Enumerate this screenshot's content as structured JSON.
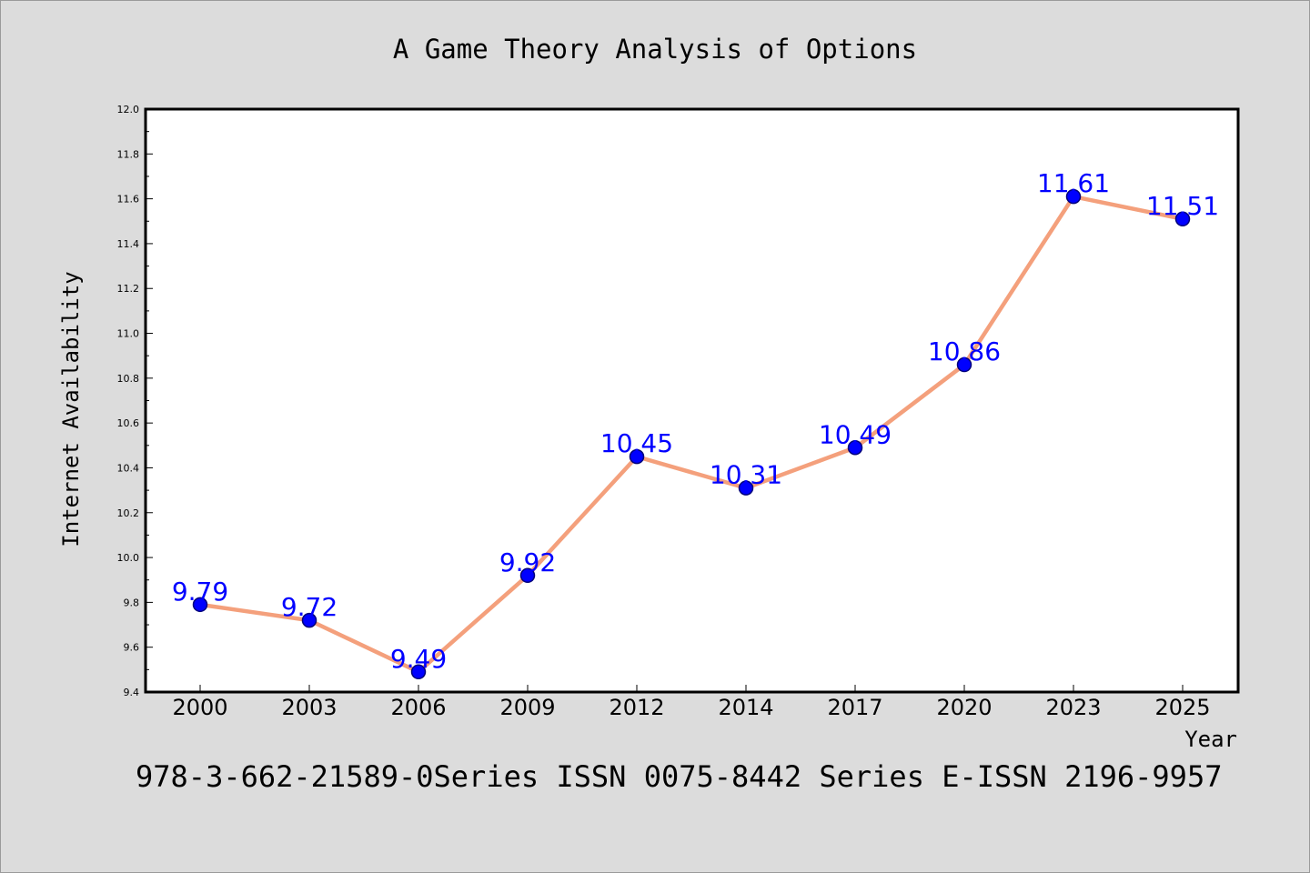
{
  "chart_data": {
    "type": "line",
    "title": "A Game Theory Analysis of Options",
    "xlabel": "Year",
    "ylabel": "Internet Availability",
    "categories": [
      "2000",
      "2003",
      "2006",
      "2009",
      "2012",
      "2014",
      "2017",
      "2020",
      "2023",
      "2025"
    ],
    "series": [
      {
        "values": [
          9.79,
          9.72,
          9.49,
          9.92,
          10.45,
          10.31,
          10.49,
          10.86,
          11.61,
          11.51
        ]
      }
    ],
    "data_labels": [
      "9.79",
      "9.72",
      "9.49",
      "9.92",
      "10.45",
      "10.31",
      "10.49",
      "10.86",
      "11.61",
      "11.51"
    ],
    "ylim": [
      9.4,
      12.0
    ],
    "yticks": [
      "9.4",
      "9.6",
      "9.8",
      "10.0",
      "10.2",
      "10.4",
      "10.6",
      "10.8",
      "11.0",
      "11.2",
      "11.4",
      "11.6",
      "11.8",
      "12.0"
    ],
    "grid": false,
    "legend": "none",
    "colors": {
      "line": "#f4a07c",
      "marker_fill": "#0000ff",
      "marker_edge": "#00007a",
      "label": "#0000ff",
      "plot_bg": "#ffffff",
      "page_bg": "#dcdcdc"
    }
  },
  "footer_text": "978-3-662-21589-0Series ISSN 0075-8442 Series E-ISSN 2196-9957"
}
